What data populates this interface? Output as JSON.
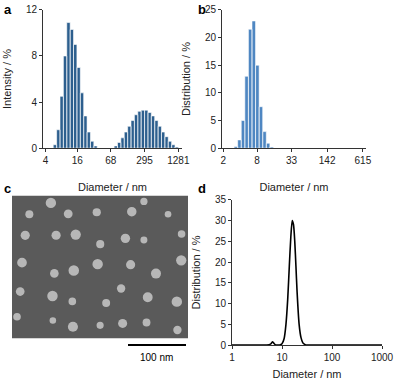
{
  "chart_data": [
    {
      "type": "histogram",
      "title": "a",
      "x_label": "Diameter / nm",
      "y_label": "Intensity / %",
      "log": "x",
      "grid": false,
      "color": "#2d5f8e",
      "bins": [
        4.187,
        4.849,
        5.615,
        6.503,
        7.531,
        8.721,
        10.1,
        11.7,
        13.54,
        15.69,
        18.17,
        21.04,
        24.36,
        28.21,
        32.67,
        37.84,
        43.82,
        50.75,
        58.77,
        68.06,
        78.82,
        91.28,
        105.7,
        122.4,
        141.8,
        164.2,
        190.1,
        220.2,
        255.0,
        295.3,
        342.0,
        396.1,
        458.7,
        531.2,
        615.1,
        712.4,
        825.0,
        955.4,
        1106,
        1281
      ],
      "values": [
        0,
        0,
        0.3,
        1.6,
        4.5,
        8.0,
        10.9,
        10.3,
        9.0,
        7.0,
        4.8,
        2.8,
        1.4,
        0.6,
        0.2,
        0,
        0,
        0,
        0,
        0,
        0.2,
        0.5,
        0.9,
        1.4,
        1.9,
        2.4,
        2.9,
        3.2,
        3.3,
        3.3,
        3.1,
        2.8,
        2.4,
        1.9,
        1.4,
        1.0,
        0.6,
        0.3,
        0.1
      ],
      "xlim": [
        3.6,
        1500
      ],
      "xticks": [
        4,
        16,
        68,
        295,
        1281
      ],
      "ylim": [
        0,
        12
      ],
      "yticks": [
        0,
        4,
        8,
        12
      ]
    },
    {
      "type": "histogram",
      "title": "b",
      "x_label": "Diameter / nm",
      "y_label": "Distribution / %",
      "log": "x",
      "grid": false,
      "color": "#4f87c2",
      "bins": [
        3.122,
        3.615,
        4.187,
        4.849,
        5.615,
        6.503,
        7.531,
        8.721,
        10.1,
        11.7,
        13.54,
        15.69
      ],
      "values": [
        0.3,
        1.5,
        5,
        13,
        21.5,
        23,
        15,
        7.5,
        3,
        0.9,
        0.2
      ],
      "xlim": [
        1.9,
        700
      ],
      "xticks": [
        2,
        8,
        33,
        142,
        615
      ],
      "ylim": [
        0,
        25
      ],
      "yticks": [
        0,
        5,
        10,
        15,
        20,
        25
      ]
    },
    {
      "type": "image",
      "title": "c",
      "annotations": [
        "100 nm"
      ]
    },
    {
      "type": "line",
      "title": "d",
      "x_label": "Diameter / nm",
      "y_label": "Distribution / %",
      "log": "x",
      "grid": false,
      "color": "#000000",
      "x": [
        1,
        3,
        5,
        6,
        6.5,
        7,
        7.5,
        8,
        9,
        10,
        11,
        12,
        13,
        14,
        15,
        16,
        17,
        18,
        19,
        20,
        22,
        24,
        26,
        28,
        30,
        40,
        100,
        1000
      ],
      "values": [
        0,
        0,
        0,
        0.3,
        0.8,
        0.3,
        0,
        0,
        0,
        0.3,
        1.5,
        5,
        11,
        19,
        26,
        30,
        29,
        25,
        19,
        13,
        5,
        1.8,
        0.6,
        0.2,
        0,
        0,
        0,
        0
      ],
      "xlim": [
        1,
        1000
      ],
      "xticks": [
        1,
        10,
        100,
        1000
      ],
      "ylim": [
        0,
        35
      ],
      "yticks": [
        0,
        5,
        10,
        15,
        20,
        25,
        30,
        35
      ]
    }
  ]
}
